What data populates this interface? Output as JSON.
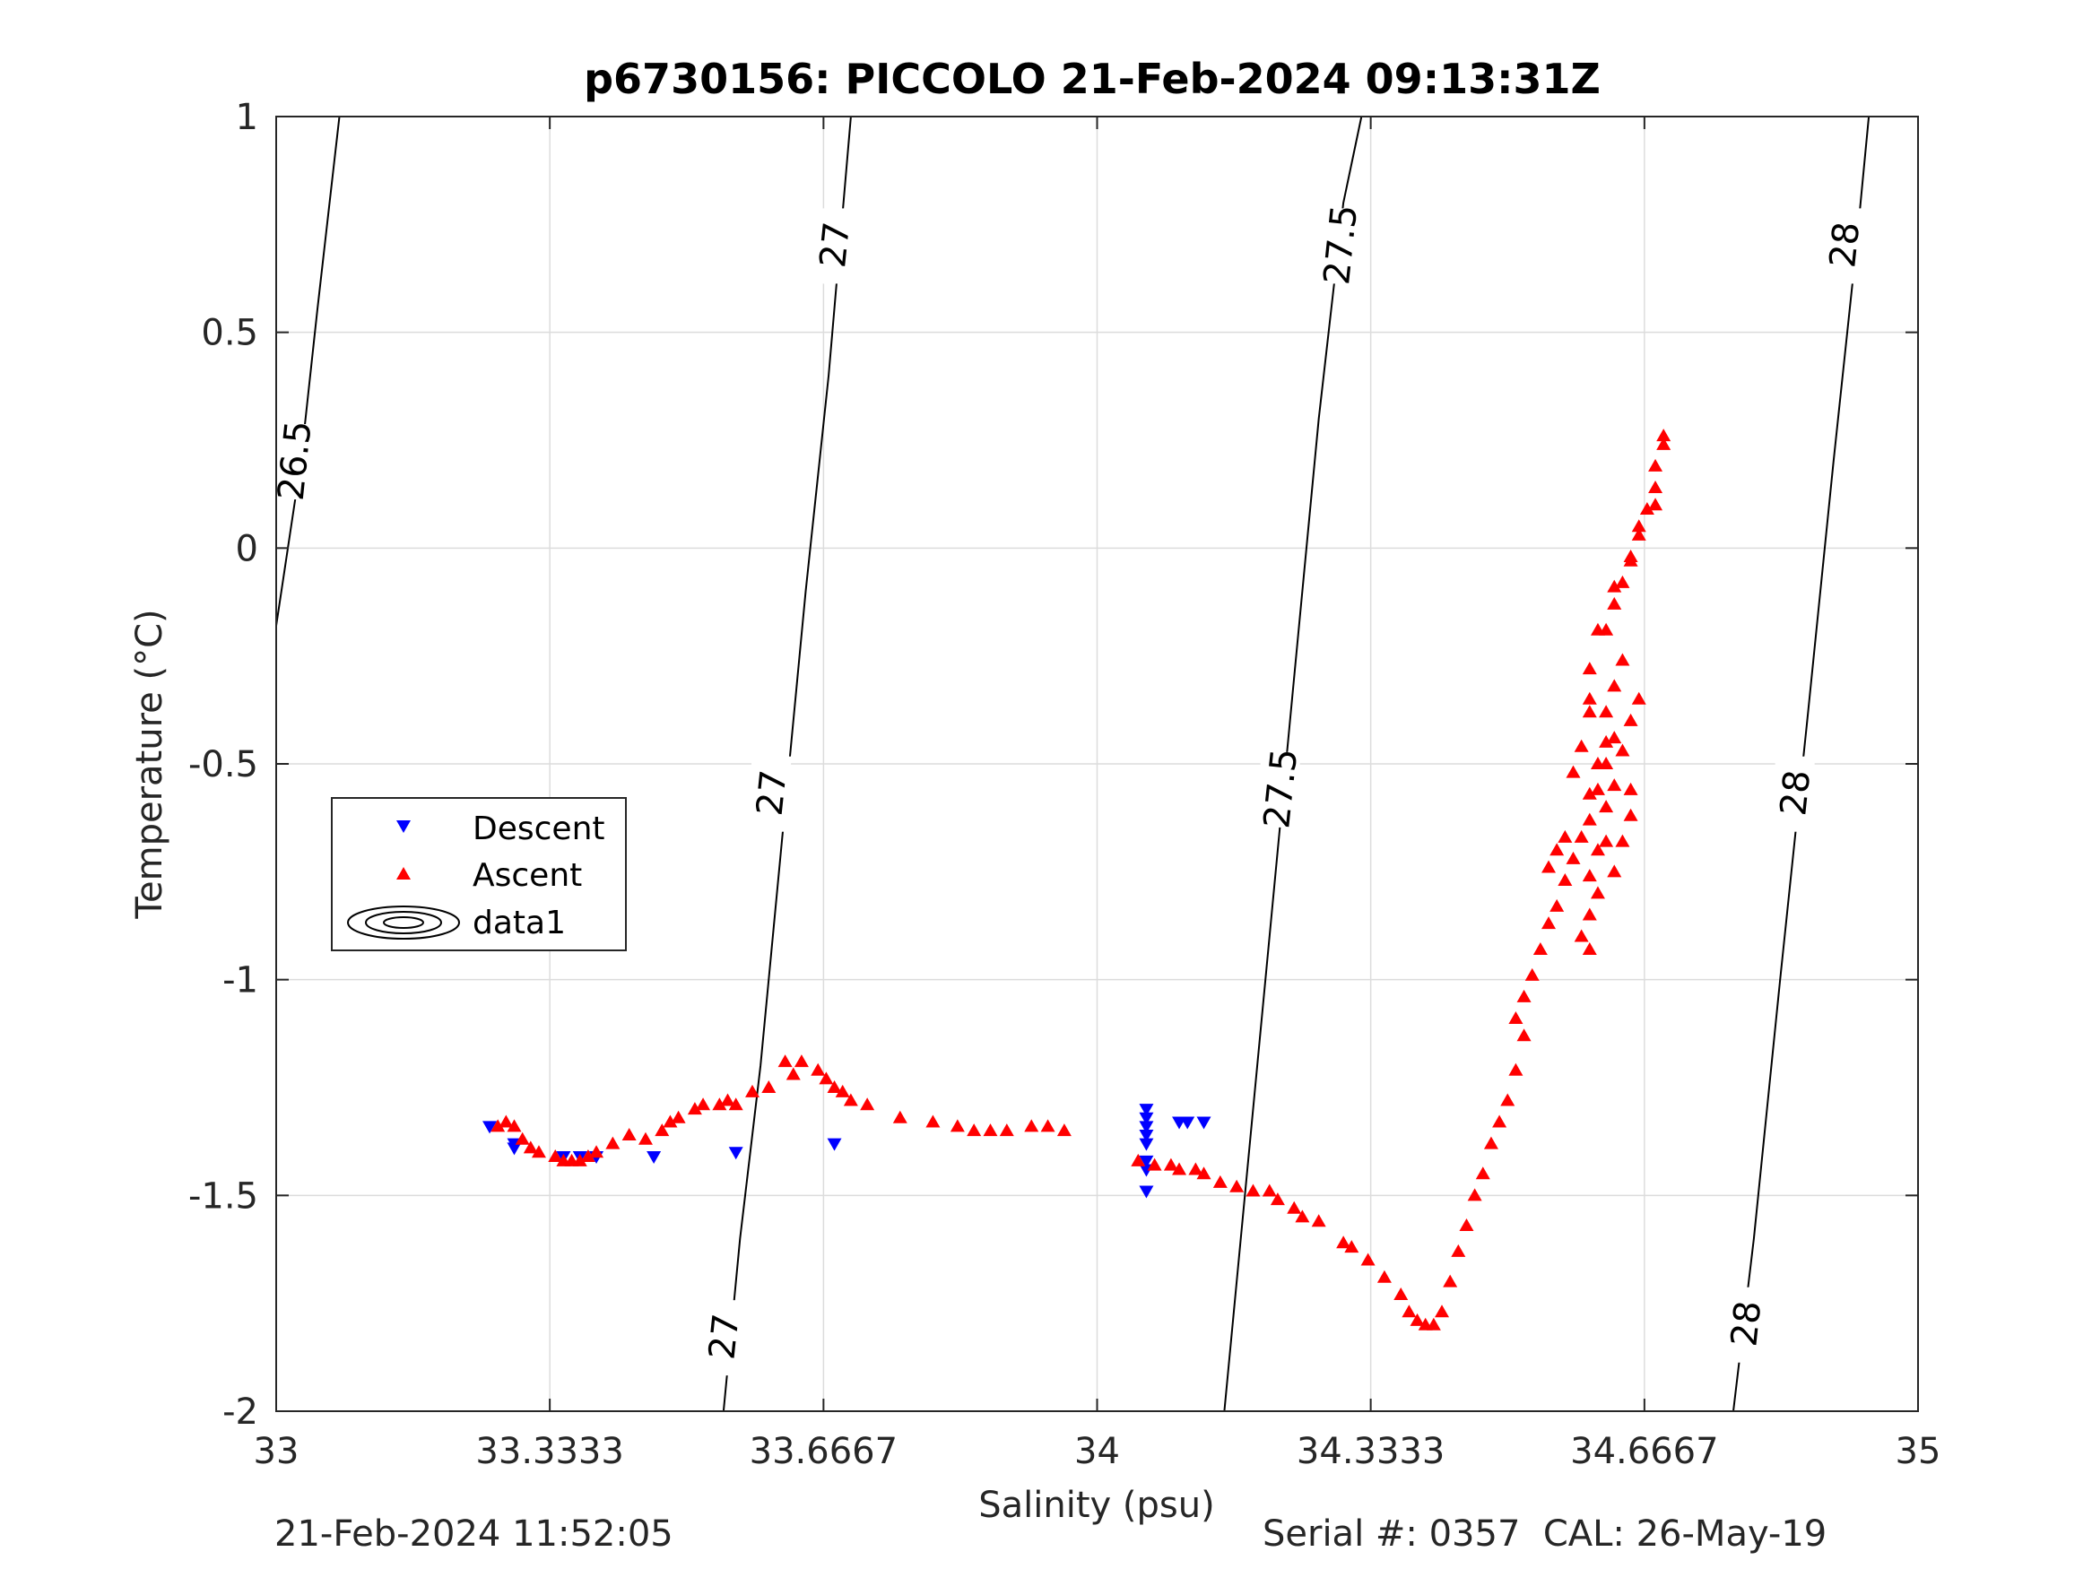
{
  "chart_data": {
    "type": "scatter",
    "title": "p6730156: PICCOLO 21-Feb-2024 09:13:31Z",
    "xlabel": "Salinity (psu)",
    "ylabel": "Temperature (°C)",
    "xlim": [
      33,
      35
    ],
    "ylim": [
      -2,
      1
    ],
    "x_ticks": [
      33,
      33.3333,
      33.6667,
      34,
      34.3333,
      34.6667,
      35
    ],
    "x_tick_labels": [
      "33",
      "33.3333",
      "33.6667",
      "34",
      "34.3333",
      "34.6667",
      "35"
    ],
    "y_ticks": [
      1,
      0.5,
      0,
      -0.5,
      -1,
      -1.5,
      -2
    ],
    "y_tick_labels": [
      "1",
      "0.5",
      "0",
      "-0.5",
      "-1",
      "-1.5",
      "-2"
    ],
    "grid": true,
    "legend_position": "left",
    "legend": [
      {
        "label": "Descent",
        "marker": "triangle-down",
        "color": "#0000ff"
      },
      {
        "label": "Ascent",
        "marker": "triangle-up",
        "color": "#ff0000"
      },
      {
        "label": "data1",
        "marker": "contour",
        "color": "#000000"
      }
    ],
    "contours": [
      {
        "label": "26.5",
        "points": [
          [
            33.0,
            -0.18
          ],
          [
            33.03,
            0.2
          ],
          [
            33.05,
            0.55
          ],
          [
            33.077,
            1.0
          ]
        ],
        "label_positions": [
          [
            33.022,
            0.2
          ]
        ]
      },
      {
        "label": "27",
        "points": [
          [
            33.545,
            -2.0
          ],
          [
            33.565,
            -1.6
          ],
          [
            33.59,
            -1.2
          ],
          [
            33.615,
            -0.7
          ],
          [
            33.645,
            -0.1
          ],
          [
            33.673,
            0.4
          ],
          [
            33.7,
            1.0
          ]
        ],
        "label_positions": [
          [
            33.545,
            -1.83
          ],
          [
            33.603,
            -0.57
          ],
          [
            33.68,
            0.7
          ]
        ]
      },
      {
        "label": "27.5",
        "points": [
          [
            34.155,
            -2.0
          ],
          [
            34.18,
            -1.5
          ],
          [
            34.205,
            -1.0
          ],
          [
            34.24,
            -0.3
          ],
          [
            34.27,
            0.3
          ],
          [
            34.3,
            0.8
          ],
          [
            34.322,
            1.0
          ]
        ],
        "label_positions": [
          [
            34.223,
            -0.56
          ],
          [
            34.296,
            0.7
          ]
        ]
      },
      {
        "label": "28",
        "points": [
          [
            34.775,
            -2.0
          ],
          [
            34.8,
            -1.6
          ],
          [
            34.832,
            -1.0
          ],
          [
            34.865,
            -0.4
          ],
          [
            34.897,
            0.2
          ],
          [
            34.925,
            0.7
          ],
          [
            34.94,
            1.0
          ]
        ],
        "label_positions": [
          [
            34.79,
            -1.8
          ],
          [
            34.85,
            -0.57
          ],
          [
            34.91,
            0.7
          ]
        ]
      }
    ],
    "series": [
      {
        "name": "Descent",
        "color": "#0000ff",
        "marker": "triangle-down",
        "points": [
          [
            33.26,
            -1.34
          ],
          [
            33.29,
            -1.38
          ],
          [
            33.29,
            -1.39
          ],
          [
            33.35,
            -1.41
          ],
          [
            33.37,
            -1.41
          ],
          [
            33.39,
            -1.41
          ],
          [
            33.46,
            -1.41
          ],
          [
            33.56,
            -1.4
          ],
          [
            33.68,
            -1.38
          ],
          [
            34.06,
            -1.3
          ],
          [
            34.06,
            -1.32
          ],
          [
            34.06,
            -1.34
          ],
          [
            34.06,
            -1.36
          ],
          [
            34.06,
            -1.38
          ],
          [
            34.06,
            -1.42
          ],
          [
            34.06,
            -1.44
          ],
          [
            34.06,
            -1.49
          ],
          [
            34.1,
            -1.33
          ],
          [
            34.11,
            -1.33
          ],
          [
            34.13,
            -1.33
          ]
        ]
      },
      {
        "name": "Ascent",
        "color": "#ff0000",
        "marker": "triangle-up",
        "points": [
          [
            33.27,
            -1.34
          ],
          [
            33.28,
            -1.33
          ],
          [
            33.29,
            -1.34
          ],
          [
            33.3,
            -1.37
          ],
          [
            33.31,
            -1.39
          ],
          [
            33.32,
            -1.4
          ],
          [
            33.34,
            -1.41
          ],
          [
            33.35,
            -1.42
          ],
          [
            33.36,
            -1.42
          ],
          [
            33.37,
            -1.42
          ],
          [
            33.38,
            -1.41
          ],
          [
            33.39,
            -1.4
          ],
          [
            33.41,
            -1.38
          ],
          [
            33.43,
            -1.36
          ],
          [
            33.45,
            -1.37
          ],
          [
            33.47,
            -1.35
          ],
          [
            33.48,
            -1.33
          ],
          [
            33.49,
            -1.32
          ],
          [
            33.51,
            -1.3
          ],
          [
            33.52,
            -1.29
          ],
          [
            33.54,
            -1.29
          ],
          [
            33.55,
            -1.28
          ],
          [
            33.56,
            -1.29
          ],
          [
            33.58,
            -1.26
          ],
          [
            33.6,
            -1.25
          ],
          [
            33.62,
            -1.19
          ],
          [
            33.63,
            -1.22
          ],
          [
            33.64,
            -1.19
          ],
          [
            33.66,
            -1.21
          ],
          [
            33.67,
            -1.23
          ],
          [
            33.68,
            -1.25
          ],
          [
            33.69,
            -1.26
          ],
          [
            33.7,
            -1.28
          ],
          [
            33.72,
            -1.29
          ],
          [
            33.76,
            -1.32
          ],
          [
            33.8,
            -1.33
          ],
          [
            33.83,
            -1.34
          ],
          [
            33.85,
            -1.35
          ],
          [
            33.87,
            -1.35
          ],
          [
            33.89,
            -1.35
          ],
          [
            33.92,
            -1.34
          ],
          [
            33.94,
            -1.34
          ],
          [
            33.96,
            -1.35
          ],
          [
            34.05,
            -1.42
          ],
          [
            34.07,
            -1.43
          ],
          [
            34.09,
            -1.43
          ],
          [
            34.1,
            -1.44
          ],
          [
            34.12,
            -1.44
          ],
          [
            34.13,
            -1.45
          ],
          [
            34.15,
            -1.47
          ],
          [
            34.17,
            -1.48
          ],
          [
            34.19,
            -1.49
          ],
          [
            34.21,
            -1.49
          ],
          [
            34.22,
            -1.51
          ],
          [
            34.24,
            -1.53
          ],
          [
            34.25,
            -1.55
          ],
          [
            34.27,
            -1.56
          ],
          [
            34.3,
            -1.61
          ],
          [
            34.31,
            -1.62
          ],
          [
            34.33,
            -1.65
          ],
          [
            34.35,
            -1.69
          ],
          [
            34.37,
            -1.73
          ],
          [
            34.38,
            -1.77
          ],
          [
            34.39,
            -1.79
          ],
          [
            34.4,
            -1.8
          ],
          [
            34.41,
            -1.8
          ],
          [
            34.42,
            -1.77
          ],
          [
            34.43,
            -1.7
          ],
          [
            34.44,
            -1.63
          ],
          [
            34.45,
            -1.57
          ],
          [
            34.46,
            -1.5
          ],
          [
            34.47,
            -1.45
          ],
          [
            34.48,
            -1.38
          ],
          [
            34.49,
            -1.33
          ],
          [
            34.5,
            -1.28
          ],
          [
            34.51,
            -1.21
          ],
          [
            34.52,
            -1.13
          ],
          [
            34.51,
            -1.09
          ],
          [
            34.52,
            -1.04
          ],
          [
            34.53,
            -0.99
          ],
          [
            34.54,
            -0.93
          ],
          [
            34.55,
            -0.87
          ],
          [
            34.56,
            -0.83
          ],
          [
            34.57,
            -0.77
          ],
          [
            34.58,
            -0.72
          ],
          [
            34.59,
            -0.67
          ],
          [
            34.6,
            -0.63
          ],
          [
            34.6,
            -0.57
          ],
          [
            34.61,
            -0.5
          ],
          [
            34.62,
            -0.45
          ],
          [
            34.62,
            -0.38
          ],
          [
            34.63,
            -0.32
          ],
          [
            34.64,
            -0.26
          ],
          [
            34.62,
            -0.19
          ],
          [
            34.63,
            -0.13
          ],
          [
            34.64,
            -0.08
          ],
          [
            34.65,
            -0.03
          ],
          [
            34.66,
            0.03
          ],
          [
            34.67,
            0.09
          ],
          [
            34.68,
            0.14
          ],
          [
            34.68,
            0.19
          ],
          [
            34.69,
            0.24
          ],
          [
            34.69,
            0.26
          ],
          [
            34.68,
            0.1
          ],
          [
            34.66,
            0.05
          ],
          [
            34.65,
            -0.02
          ],
          [
            34.63,
            -0.09
          ],
          [
            34.61,
            -0.19
          ],
          [
            34.6,
            -0.28
          ],
          [
            34.6,
            -0.38
          ],
          [
            34.59,
            -0.46
          ],
          [
            34.61,
            -0.56
          ],
          [
            34.62,
            -0.6
          ],
          [
            34.61,
            -0.7
          ],
          [
            34.6,
            -0.76
          ],
          [
            34.6,
            -0.85
          ],
          [
            34.59,
            -0.9
          ],
          [
            34.6,
            -0.93
          ],
          [
            34.61,
            -0.8
          ],
          [
            34.62,
            -0.68
          ],
          [
            34.63,
            -0.55
          ],
          [
            34.64,
            -0.47
          ],
          [
            34.65,
            -0.4
          ],
          [
            34.66,
            -0.35
          ],
          [
            34.65,
            -0.56
          ],
          [
            34.65,
            -0.62
          ],
          [
            34.64,
            -0.68
          ],
          [
            34.63,
            -0.75
          ],
          [
            34.62,
            -0.5
          ],
          [
            34.63,
            -0.44
          ],
          [
            34.6,
            -0.35
          ],
          [
            34.58,
            -0.52
          ],
          [
            34.57,
            -0.67
          ],
          [
            34.56,
            -0.7
          ],
          [
            34.55,
            -0.74
          ]
        ]
      }
    ]
  },
  "footer": {
    "left": "21-Feb-2024 11:52:05",
    "right": "Serial #: 0357  CAL: 26-May-19"
  }
}
